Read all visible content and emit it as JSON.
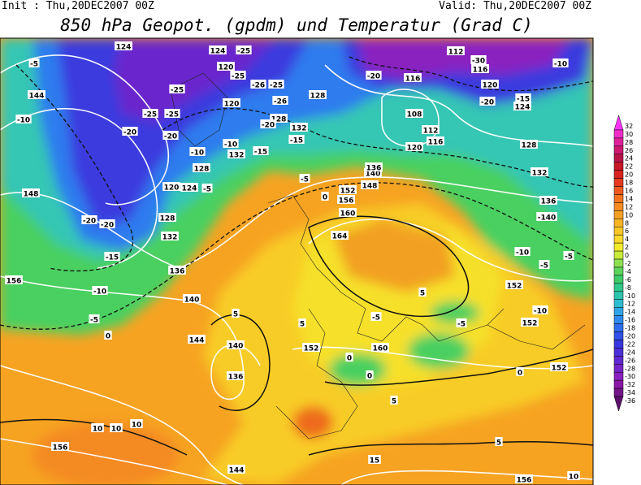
{
  "header": {
    "init": "Init : Thu,20DEC2007 00Z",
    "valid": "Valid: Thu,20DEC2007 00Z",
    "title": "850 hPa Geopot. (gpdm) und Temperatur (Grad C)"
  },
  "colorbar": {
    "levels": [
      32,
      30,
      28,
      26,
      24,
      22,
      20,
      18,
      16,
      14,
      12,
      10,
      8,
      6,
      4,
      2,
      0,
      -2,
      -4,
      -6,
      -8,
      -10,
      -12,
      -14,
      -16,
      -18,
      -20,
      -22,
      -24,
      -26,
      -28,
      -30,
      -32,
      -34,
      -36
    ],
    "colors": [
      "#ff33ff",
      "#f02cc8",
      "#e0209a",
      "#cc1870",
      "#b81448",
      "#c81828",
      "#d82420",
      "#e63a1e",
      "#ee5a1e",
      "#f2721e",
      "#f48a20",
      "#f6a022",
      "#f7b424",
      "#f8c626",
      "#f8d828",
      "#f4ea2c",
      "#c8ec3a",
      "#8ee050",
      "#5cd45c",
      "#3ccc6a",
      "#30c88c",
      "#2ec4b0",
      "#2ebcd0",
      "#2ea4e6",
      "#2e8aee",
      "#2e6eee",
      "#3050e8",
      "#3838e0",
      "#4c30d8",
      "#6028d0",
      "#7424c8",
      "#8a20c0",
      "#8a18a8",
      "#741488",
      "#5c106c"
    ]
  },
  "contour_labels": [
    "124",
    "-25",
    "124",
    "120",
    "-25",
    "-26",
    "-25",
    "-25",
    "-25",
    "-25",
    "-20",
    "-20",
    "120",
    "-26",
    "128",
    "128",
    "132",
    "-20",
    "-15",
    "-10",
    "132",
    "-15",
    "-10",
    "128",
    "120",
    "124",
    "-5",
    "-5",
    "144",
    "-10",
    "148",
    "-20",
    "-20",
    "128",
    "132",
    "-15",
    "136",
    "156",
    "-10",
    "-5",
    "0",
    "140",
    "144",
    "140",
    "136",
    "152",
    "0",
    "160",
    "0",
    "156",
    "10",
    "10",
    "10",
    "144",
    "15",
    "156",
    "10",
    "112",
    "-30",
    "116",
    "-20",
    "116",
    "120",
    "-15",
    "124",
    "-20",
    "108",
    "112",
    "116",
    "120",
    "128",
    "132",
    "136",
    "-140",
    "-10",
    "-5",
    "152",
    "152",
    "152",
    "-10",
    "164",
    "160",
    "156",
    "152",
    "148",
    "140",
    "136",
    "5",
    "5",
    "-5",
    "0",
    "5",
    "-5",
    "5",
    "5",
    "-5",
    "-10",
    "-5",
    "0"
  ]
}
